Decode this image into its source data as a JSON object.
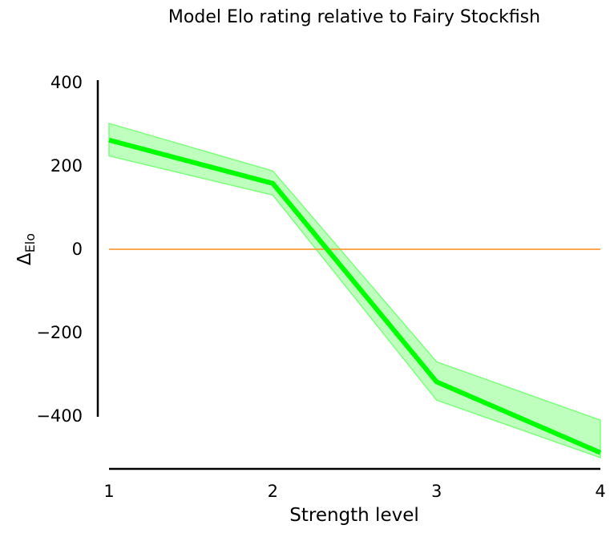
{
  "chart_data": {
    "type": "line",
    "title": "Model Elo rating relative to Fairy Stockfish",
    "xlabel": "Strength level",
    "ylabel_main": "Δ",
    "ylabel_sub": "Elo",
    "x": [
      1,
      2,
      3,
      4
    ],
    "xlim": [
      1,
      4
    ],
    "xticks": [
      "1",
      "2",
      "3",
      "4"
    ],
    "ylim": [
      -525,
      400
    ],
    "yticks": [
      400,
      200,
      0,
      -200,
      -400
    ],
    "ytick_labels": [
      "400",
      "200",
      "0",
      "−200",
      "−400"
    ],
    "grid": false,
    "series": [
      {
        "values": [
          262,
          158,
          -318,
          -488
        ],
        "lower": [
          224,
          130,
          -362,
          -500
        ],
        "upper": [
          302,
          188,
          -270,
          -410
        ],
        "color": "#00ff00",
        "band_color": "#7dff7d"
      }
    ],
    "reference_line": {
      "y": 0,
      "color": "#ff8c1a"
    }
  }
}
